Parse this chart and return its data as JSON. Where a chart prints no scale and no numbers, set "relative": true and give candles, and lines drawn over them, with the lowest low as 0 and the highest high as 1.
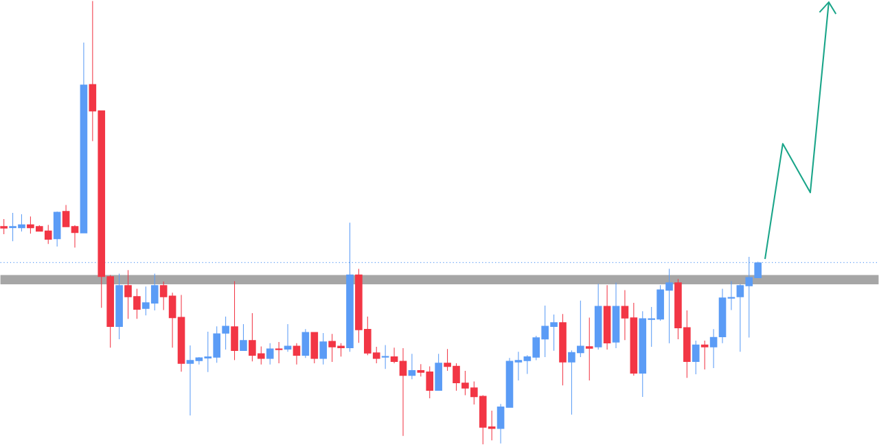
{
  "chart_data": {
    "type": "candlestick",
    "relative": true,
    "categories": [
      null,
      null,
      null,
      null,
      null,
      null,
      null,
      null,
      null,
      null,
      null,
      null,
      null,
      null,
      null,
      null,
      null,
      null,
      null,
      null,
      null,
      null,
      null,
      null,
      null,
      null,
      null,
      null,
      null,
      null,
      null,
      null,
      null,
      null,
      null,
      null,
      null,
      null,
      null,
      null,
      null,
      null,
      null,
      null,
      null,
      null,
      null,
      null,
      null,
      null,
      null,
      null,
      null,
      null,
      null,
      null,
      null,
      null,
      null,
      null,
      null,
      null,
      null,
      null,
      null,
      null,
      null,
      null,
      null,
      null,
      null,
      null,
      null,
      null,
      null,
      null,
      null,
      null,
      null,
      null,
      null,
      null,
      null,
      null,
      null,
      null
    ],
    "ohlc": [
      [
        0.491,
        0.508,
        0.474,
        0.488
      ],
      [
        0.489,
        0.522,
        0.458,
        0.491
      ],
      [
        0.489,
        0.519,
        0.48,
        0.495
      ],
      [
        0.495,
        0.514,
        0.475,
        0.489
      ],
      [
        0.491,
        0.494,
        0.481,
        0.481
      ],
      [
        0.481,
        0.495,
        0.452,
        0.463
      ],
      [
        0.464,
        0.525,
        0.446,
        0.523
      ],
      [
        0.525,
        0.54,
        0.491,
        0.491
      ],
      [
        0.491,
        0.494,
        0.444,
        0.478
      ],
      [
        0.477,
        0.906,
        0.477,
        0.81
      ],
      [
        0.811,
        1.0,
        0.684,
        0.752
      ],
      [
        0.752,
        0.752,
        0.308,
        0.379
      ],
      [
        0.378,
        0.382,
        0.218,
        0.266
      ],
      [
        0.266,
        0.385,
        0.237,
        0.358
      ],
      [
        0.358,
        0.393,
        0.283,
        0.333
      ],
      [
        0.333,
        0.351,
        0.283,
        0.305
      ],
      [
        0.307,
        0.356,
        0.291,
        0.319
      ],
      [
        0.319,
        0.385,
        0.302,
        0.358
      ],
      [
        0.358,
        0.367,
        0.303,
        0.333
      ],
      [
        0.334,
        0.342,
        0.218,
        0.286
      ],
      [
        0.286,
        0.337,
        0.164,
        0.183
      ],
      [
        0.183,
        0.223,
        0.065,
        0.189
      ],
      [
        0.189,
        0.197,
        0.18,
        0.195
      ],
      [
        0.195,
        0.254,
        0.163,
        0.197
      ],
      [
        0.197,
        0.266,
        0.184,
        0.249
      ],
      [
        0.251,
        0.288,
        0.214,
        0.266
      ],
      [
        0.265,
        0.368,
        0.19,
        0.212
      ],
      [
        0.212,
        0.271,
        0.211,
        0.234
      ],
      [
        0.234,
        0.296,
        0.187,
        0.201
      ],
      [
        0.204,
        0.221,
        0.18,
        0.194
      ],
      [
        0.194,
        0.228,
        0.18,
        0.215
      ],
      [
        0.215,
        0.231,
        0.183,
        0.214
      ],
      [
        0.215,
        0.271,
        0.209,
        0.221
      ],
      [
        0.221,
        0.228,
        0.18,
        0.201
      ],
      [
        0.201,
        0.26,
        0.195,
        0.252
      ],
      [
        0.252,
        0.252,
        0.183,
        0.194
      ],
      [
        0.194,
        0.251,
        0.18,
        0.231
      ],
      [
        0.232,
        0.249,
        0.186,
        0.22
      ],
      [
        0.221,
        0.228,
        0.198,
        0.218
      ],
      [
        0.218,
        0.5,
        0.209,
        0.382
      ],
      [
        0.382,
        0.396,
        0.229,
        0.259
      ],
      [
        0.259,
        0.288,
        0.201,
        0.206
      ],
      [
        0.206,
        0.22,
        0.183,
        0.194
      ],
      [
        0.197,
        0.224,
        0.17,
        0.198
      ],
      [
        0.197,
        0.218,
        0.183,
        0.187
      ],
      [
        0.187,
        0.217,
        0.019,
        0.156
      ],
      [
        0.156,
        0.204,
        0.147,
        0.166
      ],
      [
        0.166,
        0.181,
        0.153,
        0.163
      ],
      [
        0.163,
        0.176,
        0.104,
        0.122
      ],
      [
        0.122,
        0.204,
        0.122,
        0.183
      ],
      [
        0.183,
        0.215,
        0.166,
        0.176
      ],
      [
        0.176,
        0.183,
        0.121,
        0.139
      ],
      [
        0.138,
        0.166,
        0.111,
        0.127
      ],
      [
        0.127,
        0.142,
        0.09,
        0.108
      ],
      [
        0.108,
        0.111,
        0.0,
        0.039
      ],
      [
        0.039,
        0.076,
        0.009,
        0.036
      ],
      [
        0.036,
        0.091,
        0.002,
        0.084
      ],
      [
        0.084,
        0.195,
        0.084,
        0.187
      ],
      [
        0.186,
        0.209,
        0.144,
        0.189
      ],
      [
        0.189,
        0.201,
        0.159,
        0.197
      ],
      [
        0.197,
        0.245,
        0.19,
        0.24
      ],
      [
        0.238,
        0.313,
        0.197,
        0.266
      ],
      [
        0.266,
        0.293,
        0.211,
        0.274
      ],
      [
        0.274,
        0.294,
        0.133,
        0.186
      ],
      [
        0.186,
        0.212,
        0.067,
        0.207
      ],
      [
        0.207,
        0.324,
        0.197,
        0.221
      ],
      [
        0.22,
        0.286,
        0.144,
        0.217
      ],
      [
        0.22,
        0.362,
        0.214,
        0.311
      ],
      [
        0.311,
        0.359,
        0.214,
        0.229
      ],
      [
        0.231,
        0.365,
        0.217,
        0.311
      ],
      [
        0.311,
        0.348,
        0.235,
        0.285
      ],
      [
        0.285,
        0.319,
        0.155,
        0.161
      ],
      [
        0.161,
        0.3,
        0.107,
        0.283
      ],
      [
        0.282,
        0.31,
        0.22,
        0.283
      ],
      [
        0.283,
        0.359,
        0.279,
        0.348
      ],
      [
        0.348,
        0.396,
        0.228,
        0.364
      ],
      [
        0.364,
        0.373,
        0.237,
        0.263
      ],
      [
        0.263,
        0.302,
        0.15,
        0.187
      ],
      [
        0.187,
        0.234,
        0.158,
        0.224
      ],
      [
        0.224,
        0.234,
        0.169,
        0.22
      ],
      [
        0.22,
        0.26,
        0.172,
        0.241
      ],
      [
        0.243,
        0.351,
        0.228,
        0.33
      ],
      [
        0.33,
        0.368,
        0.303,
        0.331
      ],
      [
        0.333,
        0.361,
        0.209,
        0.358
      ],
      [
        0.358,
        0.423,
        0.241,
        0.376
      ],
      [
        0.376,
        0.412,
        0.375,
        0.409
      ]
    ],
    "colors": [
      "#f23645",
      "#5b9cf6",
      "#5b9cf6",
      "#f23645",
      "#f23645",
      "#f23645",
      "#5b9cf6",
      "#f23645",
      "#f23645",
      "#5b9cf6",
      "#f23645",
      "#f23645",
      "#f23645",
      "#5b9cf6",
      "#f23645",
      "#f23645",
      "#5b9cf6",
      "#5b9cf6",
      "#f23645",
      "#f23645",
      "#f23645",
      "#5b9cf6",
      "#5b9cf6",
      "#5b9cf6",
      "#5b9cf6",
      "#5b9cf6",
      "#f23645",
      "#5b9cf6",
      "#f23645",
      "#f23645",
      "#5b9cf6",
      "#f23645",
      "#5b9cf6",
      "#f23645",
      "#5b9cf6",
      "#f23645",
      "#5b9cf6",
      "#f23645",
      "#f23645",
      "#5b9cf6",
      "#f23645",
      "#f23645",
      "#f23645",
      "#5b9cf6",
      "#f23645",
      "#f23645",
      "#5b9cf6",
      "#f23645",
      "#f23645",
      "#5b9cf6",
      "#f23645",
      "#f23645",
      "#f23645",
      "#f23645",
      "#f23645",
      "#f23645",
      "#5b9cf6",
      "#5b9cf6",
      "#5b9cf6",
      "#5b9cf6",
      "#5b9cf6",
      "#5b9cf6",
      "#5b9cf6",
      "#f23645",
      "#5b9cf6",
      "#5b9cf6",
      "#f23645",
      "#5b9cf6",
      "#f23645",
      "#5b9cf6",
      "#f23645",
      "#f23645",
      "#5b9cf6",
      "#5b9cf6",
      "#5b9cf6",
      "#5b9cf6",
      "#f23645",
      "#f23645",
      "#5b9cf6",
      "#f23645",
      "#5b9cf6",
      "#5b9cf6",
      "#5b9cf6",
      "#5b9cf6",
      "#5b9cf6",
      "#5b9cf6"
    ],
    "bands": [
      {
        "axis": "y",
        "from": 0.361,
        "to": 0.382,
        "color": "#a6a6a6"
      }
    ],
    "ref_lines": [
      {
        "axis": "y",
        "value": 0.41,
        "color": "#5b9cf6",
        "line_style": "dotted"
      }
    ]
  }
}
